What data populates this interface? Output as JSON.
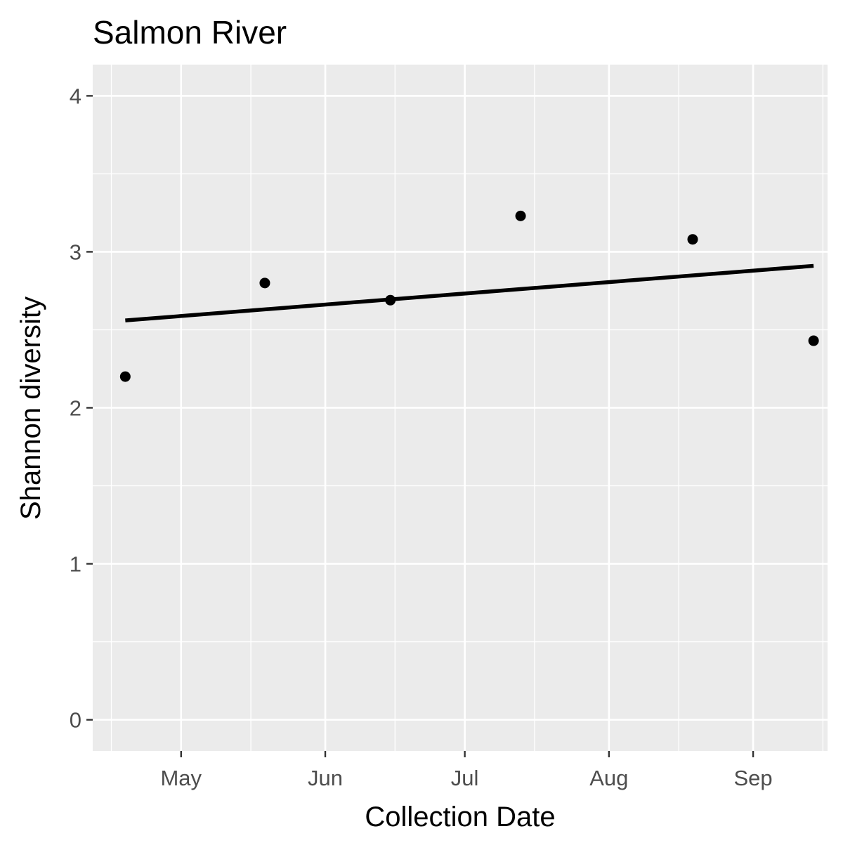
{
  "chart_data": {
    "type": "scatter",
    "title": "Salmon River",
    "xlabel": "Collection Date",
    "ylabel": "Shannon diversity",
    "x_ticks": [
      {
        "date": "2019-05-01",
        "label": "May"
      },
      {
        "date": "2019-06-01",
        "label": "Jun"
      },
      {
        "date": "2019-07-01",
        "label": "Jul"
      },
      {
        "date": "2019-08-01",
        "label": "Aug"
      },
      {
        "date": "2019-09-01",
        "label": "Sep"
      }
    ],
    "x_minor_ticks": [
      "2019-04-16",
      "2019-05-16",
      "2019-06-16",
      "2019-07-16",
      "2019-08-16",
      "2019-09-16"
    ],
    "y_ticks": [
      0,
      1,
      2,
      3,
      4
    ],
    "xlim": [
      "2019-04-12",
      "2019-09-17"
    ],
    "ylim": [
      -0.2,
      4.2
    ],
    "grid": true,
    "points": [
      {
        "x": "2019-04-19",
        "y": 2.2
      },
      {
        "x": "2019-05-19",
        "y": 2.8
      },
      {
        "x": "2019-06-15",
        "y": 2.69
      },
      {
        "x": "2019-07-13",
        "y": 3.23
      },
      {
        "x": "2019-08-19",
        "y": 3.08
      },
      {
        "x": "2019-09-14",
        "y": 2.43
      }
    ],
    "trend_line": {
      "x": [
        "2019-04-19",
        "2019-09-14"
      ],
      "y": [
        2.56,
        2.91
      ]
    },
    "colors": {
      "panel_background": "#ebebeb",
      "grid": "#ffffff",
      "points": "#000000",
      "trend_line": "#000000",
      "tick_labels": "#4d4d4d",
      "ticks": "#333333"
    }
  }
}
